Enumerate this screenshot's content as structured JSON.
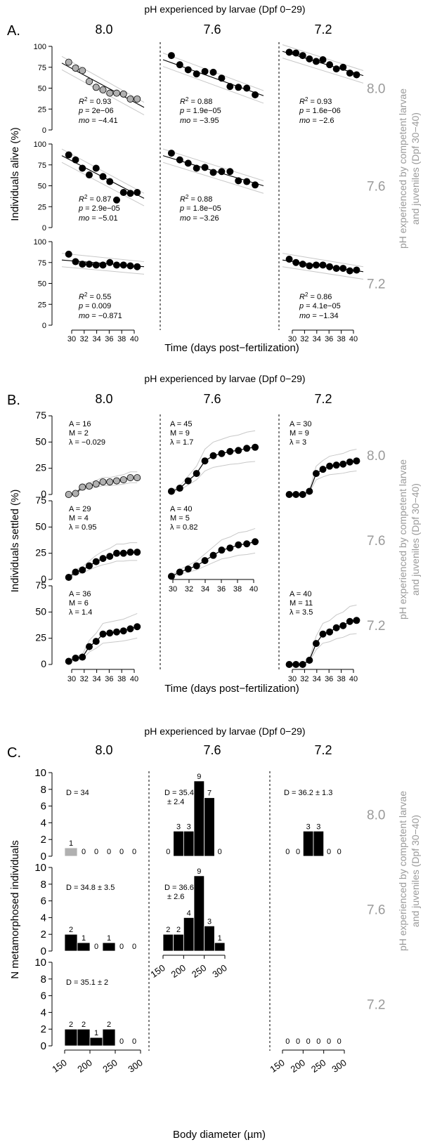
{
  "colors": {
    "black": "#000000",
    "grey": "#9a9a9a",
    "lightgrey": "#c8c8c8",
    "fill_grey": "#b0b0b0"
  },
  "panelA": {
    "letter": "A.",
    "top_title": "pH experienced by larvae (Dpf 0−29)",
    "col_labels": [
      "8.0",
      "7.6",
      "7.2"
    ],
    "row_labels": [
      "8.0",
      "7.6",
      "7.2"
    ],
    "side_title_1": "pH experienced by competent larvae",
    "side_title_2": "and juveniles (Dpf 30−40)",
    "ylabel": "Individuals alive (%)",
    "xlabel": "Time (days post−fertilization)",
    "yticks": [
      "0",
      "25",
      "50",
      "75",
      "100"
    ],
    "xticks": [
      "30",
      "32",
      "34",
      "36",
      "38",
      "40"
    ],
    "r2_label": "R",
    "p_label": "p",
    "mo_label": "mo"
  },
  "panelB": {
    "letter": "B.",
    "top_title": "pH experienced by larvae (Dpf 0−29)",
    "col_labels": [
      "8.0",
      "7.6",
      "7.2"
    ],
    "row_labels": [
      "8.0",
      "7.6",
      "7.2"
    ],
    "side_title_1": "pH experienced by competent larvae",
    "side_title_2": "and juveniles (Dpf 30−40)",
    "ylabel": "Individuals settled (%)",
    "xlabel": "Time (days post−fertilization)",
    "yticks": [
      "0",
      "25",
      "50",
      "75"
    ],
    "xticks": [
      "30",
      "32",
      "34",
      "36",
      "38",
      "40"
    ]
  },
  "panelC": {
    "letter": "C.",
    "top_title": "pH experienced by larvae (Dpf 0−29)",
    "col_labels": [
      "8.0",
      "7.6",
      "7.2"
    ],
    "row_labels": [
      "8.0",
      "7.6",
      "7.2"
    ],
    "side_title_1": "pH experienced by competent larvae",
    "side_title_2": "and juveniles (Dpf 30−40)",
    "ylabel": "N metamorphosed individuals",
    "xlabel": "Body diameter (µm)",
    "yticks": [
      "0",
      "2",
      "4",
      "6",
      "8",
      "10"
    ],
    "xticks": [
      "150",
      "200",
      "250",
      "300"
    ]
  },
  "chart_data": [
    {
      "type": "scatter",
      "id": "A",
      "ylim": [
        0,
        100
      ],
      "xlim": [
        29,
        41
      ],
      "cells": [
        {
          "row": 0,
          "col": 0,
          "style": "grey",
          "x": [
            30,
            31,
            32,
            33,
            34,
            35,
            36,
            37,
            38,
            39,
            40
          ],
          "y": [
            81,
            74,
            71,
            58,
            51,
            48,
            44,
            44,
            43,
            37,
            37
          ],
          "fit": [
            80,
            27
          ],
          "r2": "0.93",
          "p": "2e−06",
          "mo": "−4.41"
        },
        {
          "row": 0,
          "col": 1,
          "style": "black",
          "x": [
            30,
            31,
            32,
            33,
            34,
            35,
            36,
            37,
            38,
            39,
            40
          ],
          "y": [
            89,
            78,
            72,
            67,
            70,
            69,
            62,
            52,
            51,
            50,
            42
          ],
          "fit": [
            84,
            41
          ],
          "r2": "0.88",
          "p": "1.9e−05",
          "mo": "−3.95"
        },
        {
          "row": 0,
          "col": 2,
          "style": "black",
          "x": [
            30,
            31,
            32,
            33,
            34,
            35,
            36,
            37,
            38,
            39,
            40
          ],
          "y": [
            93,
            92,
            89,
            85,
            82,
            84,
            78,
            73,
            75,
            68,
            66
          ],
          "fit": [
            94,
            65
          ],
          "r2": "0.93",
          "p": "1.6e−06",
          "mo": "−2.6"
        },
        {
          "row": 1,
          "col": 0,
          "style": "black",
          "x": [
            30,
            31,
            32,
            33,
            34,
            35,
            36,
            37,
            38,
            39,
            40
          ],
          "y": [
            87,
            81,
            71,
            63,
            71,
            61,
            55,
            33,
            42,
            41,
            42
          ],
          "fit": [
            86,
            35
          ],
          "r2": "0.87",
          "p": "2.9e−05",
          "mo": "−5.01"
        },
        {
          "row": 1,
          "col": 1,
          "style": "black",
          "x": [
            30,
            31,
            32,
            33,
            34,
            35,
            36,
            37,
            38,
            39,
            40
          ],
          "y": [
            89,
            81,
            77,
            71,
            72,
            66,
            67,
            67,
            56,
            55,
            51
          ],
          "fit": [
            86,
            50
          ],
          "r2": "0.88",
          "p": "1.8e−05",
          "mo": "−3.26"
        },
        {
          "row": 2,
          "col": 0,
          "style": "black",
          "x": [
            30,
            31,
            32,
            33,
            34,
            35,
            36,
            37,
            38,
            39,
            40
          ],
          "y": [
            85,
            76,
            73,
            73,
            72,
            72,
            75,
            72,
            72,
            71,
            70
          ],
          "fit": [
            78,
            70
          ],
          "r2": "0.55",
          "p": "0.009",
          "mo": "−0.871"
        },
        {
          "row": 2,
          "col": 2,
          "style": "black",
          "x": [
            30,
            31,
            32,
            33,
            34,
            35,
            36,
            37,
            38,
            39,
            40
          ],
          "y": [
            79,
            75,
            73,
            71,
            72,
            72,
            70,
            68,
            68,
            65,
            66
          ],
          "fit": [
            78,
            64
          ],
          "r2": "0.86",
          "p": "4.1e−05",
          "mo": "−1.34"
        }
      ]
    },
    {
      "type": "line",
      "id": "B",
      "ylim": [
        0,
        75
      ],
      "xlim": [
        29,
        41
      ],
      "cells": [
        {
          "row": 0,
          "col": 0,
          "style": "grey",
          "x": [
            30,
            31,
            32,
            33,
            34,
            35,
            36,
            37,
            38,
            39,
            40
          ],
          "y": [
            0,
            1,
            7,
            8,
            10,
            12,
            12,
            13,
            14,
            16,
            16
          ],
          "A": "16",
          "M": "2",
          "lambda": "−0.029"
        },
        {
          "row": 0,
          "col": 1,
          "style": "black",
          "x": [
            30,
            31,
            32,
            33,
            34,
            35,
            36,
            37,
            38,
            39,
            40
          ],
          "y": [
            3,
            6,
            13,
            20,
            32,
            37,
            39,
            41,
            42,
            44,
            45
          ],
          "A": "45",
          "M": "9",
          "lambda": "1.7"
        },
        {
          "row": 0,
          "col": 2,
          "style": "black",
          "x": [
            30,
            31,
            32,
            33,
            34,
            35,
            36,
            37,
            38,
            39,
            40
          ],
          "y": [
            0,
            0,
            0,
            3,
            20,
            24,
            27,
            28,
            29,
            31,
            32
          ],
          "A": "30",
          "M": "9",
          "lambda": "3"
        },
        {
          "row": 1,
          "col": 0,
          "style": "black",
          "x": [
            30,
            31,
            32,
            33,
            34,
            35,
            36,
            37,
            38,
            39,
            40
          ],
          "y": [
            2,
            7,
            9,
            13,
            17,
            20,
            22,
            25,
            25,
            26,
            26
          ],
          "A": "29",
          "M": "4",
          "lambda": "0.95"
        },
        {
          "row": 1,
          "col": 1,
          "style": "black",
          "x": [
            30,
            31,
            32,
            33,
            34,
            35,
            36,
            37,
            38,
            39,
            40
          ],
          "y": [
            3,
            7,
            10,
            13,
            18,
            23,
            28,
            30,
            33,
            34,
            36
          ],
          "A": "40",
          "M": "5",
          "lambda": "0.82"
        },
        {
          "row": 2,
          "col": 0,
          "style": "black",
          "x": [
            30,
            31,
            32,
            33,
            34,
            35,
            36,
            37,
            38,
            39,
            40
          ],
          "y": [
            3,
            6,
            7,
            17,
            22,
            29,
            30,
            31,
            32,
            34,
            36
          ],
          "A": "36",
          "M": "6",
          "lambda": "1.4"
        },
        {
          "row": 2,
          "col": 2,
          "style": "black",
          "x": [
            30,
            31,
            32,
            33,
            34,
            35,
            36,
            37,
            38,
            39,
            40
          ],
          "y": [
            0,
            0,
            0,
            4,
            20,
            29,
            31,
            35,
            37,
            41,
            42
          ],
          "A": "40",
          "M": "11",
          "lambda": "3.5"
        }
      ]
    },
    {
      "type": "bar",
      "id": "C",
      "ylim": [
        0,
        10
      ],
      "xlim": [
        150,
        300
      ],
      "bin_edges": [
        150,
        175,
        200,
        225,
        250,
        275,
        300
      ],
      "cells": [
        {
          "row": 0,
          "col": 0,
          "style": "grey",
          "counts": [
            1,
            0,
            0,
            0,
            0,
            0
          ],
          "D": "D = 34"
        },
        {
          "row": 0,
          "col": 1,
          "style": "black",
          "counts": [
            0,
            3,
            3,
            9,
            7,
            0
          ],
          "D": "D = 35.4",
          "D2": "± 2.4"
        },
        {
          "row": 0,
          "col": 2,
          "style": "black",
          "counts": [
            0,
            0,
            3,
            3,
            0,
            0
          ],
          "D": "D = 36.2 ± 1.3"
        },
        {
          "row": 1,
          "col": 0,
          "style": "black",
          "counts": [
            2,
            1,
            0,
            1,
            0,
            0
          ],
          "D": "D = 34.8 ± 3.5"
        },
        {
          "row": 1,
          "col": 1,
          "style": "black",
          "counts": [
            2,
            2,
            4,
            9,
            3,
            1
          ],
          "D": "D = 36.6",
          "D2": "± 2.6"
        },
        {
          "row": 2,
          "col": 0,
          "style": "black",
          "counts": [
            2,
            2,
            1,
            2,
            0,
            0
          ],
          "D": "D = 35.1 ± 2"
        },
        {
          "row": 2,
          "col": 2,
          "style": "black",
          "counts": [
            0,
            0,
            0,
            0,
            0,
            0
          ],
          "D": ""
        }
      ]
    }
  ]
}
